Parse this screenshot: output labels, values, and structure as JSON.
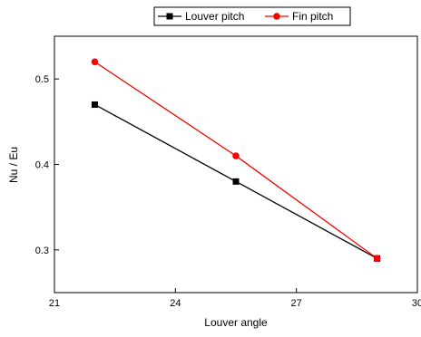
{
  "chart_data": {
    "type": "line",
    "xlabel": "Louver angle",
    "ylabel": "Nu / Eu",
    "xlim": [
      21,
      30
    ],
    "ylim": [
      0.25,
      0.55
    ],
    "xticks": [
      21,
      24,
      27,
      30
    ],
    "yticks": [
      0.3,
      0.4,
      0.5
    ],
    "x_tick_labels": [
      "21",
      "24",
      "27",
      "30"
    ],
    "y_tick_labels": [
      "0.3",
      "0.4",
      "0.5"
    ],
    "grid": false,
    "legend_position": "top-center",
    "series": [
      {
        "name": "Louver pitch",
        "color": "#000000",
        "marker": "square",
        "x": [
          22.0,
          25.5,
          29.0
        ],
        "y": [
          0.47,
          0.38,
          0.29
        ]
      },
      {
        "name": "Fin pitch",
        "color": "#ff0000",
        "marker": "circle",
        "x": [
          22.0,
          25.5,
          29.0
        ],
        "y": [
          0.52,
          0.41,
          0.29
        ]
      }
    ]
  }
}
